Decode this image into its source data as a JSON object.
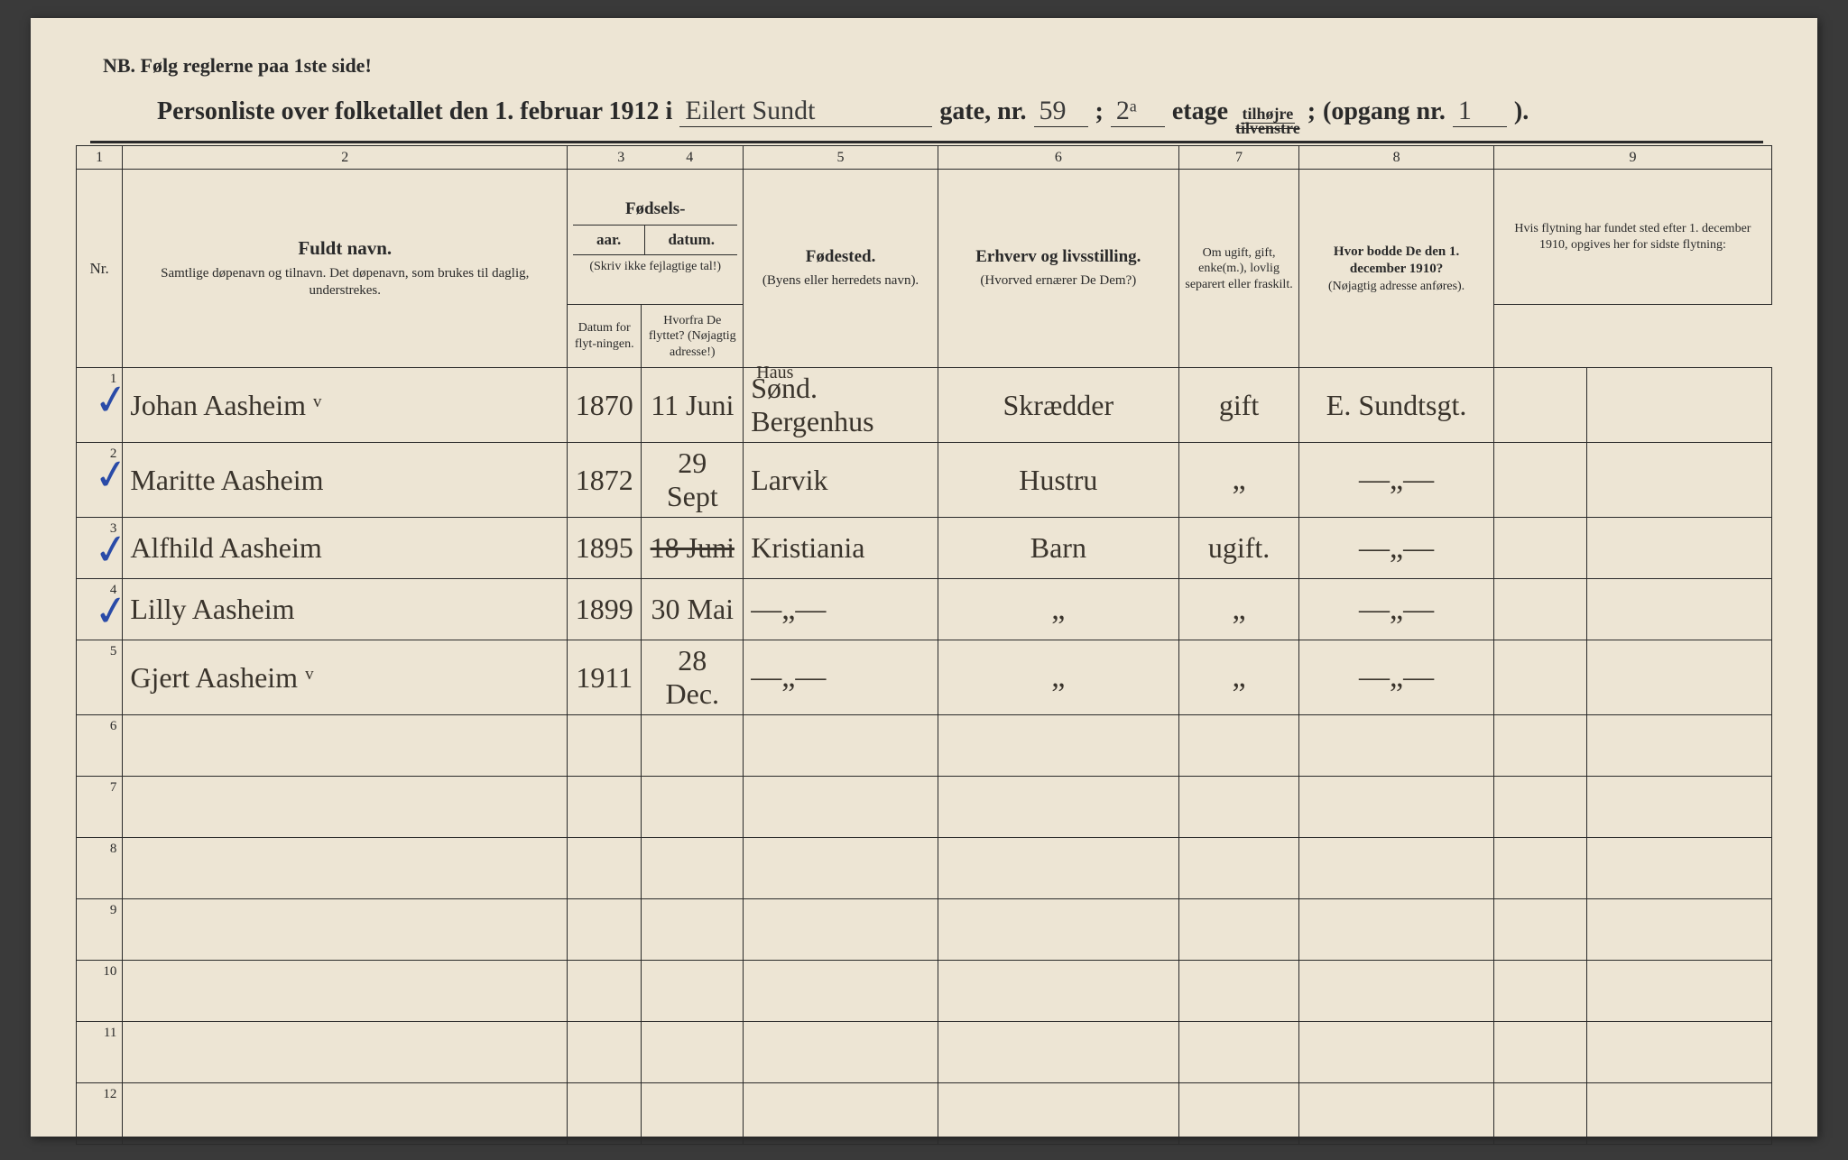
{
  "header": {
    "nb": "NB.   Følg reglerne paa 1ste side!",
    "title_prefix": "Personliste over folketallet den 1. februar 1912 i",
    "street_written": "Eilert Sundt",
    "gate_label": "gate, nr.",
    "gate_nr": "59",
    "semicolon": ";",
    "etage_nr": "2ᵃ",
    "etage_label": "etage",
    "side_top": "tilhøjre",
    "side_bottom": "tilvenstre",
    "side_sep": ";",
    "opgang_prefix": "(opgang  nr.",
    "opgang_nr": "1",
    "opgang_suffix": ")."
  },
  "colnums": [
    "1",
    "2",
    "3",
    "4",
    "5",
    "6",
    "7",
    "8",
    "9"
  ],
  "columns": {
    "nr": "Nr.",
    "name_title": "Fuldt navn.",
    "name_sub": "Samtlige døpenavn og tilnavn. Det døpenavn, som brukes til daglig, understrekes.",
    "birth_title": "Fødsels-",
    "birth_year": "aar.",
    "birth_date": "datum.",
    "birth_note": "(Skriv ikke fejlagtige tal!)",
    "birthplace_title": "Fødested.",
    "birthplace_sub": "(Byens eller herredets navn).",
    "occ_title": "Erhverv og livsstilling.",
    "occ_sub": "(Hvorved ernærer De Dem?)",
    "marital": "Om ugift, gift, enke(m.), lovlig separert eller fraskilt.",
    "addr_title": "Hvor bodde De den 1. december 1910?",
    "addr_sub": "(Nøjagtig adresse anføres).",
    "move_title": "Hvis flytning har fundet sted efter 1. december 1910, opgives her for sidste flytning:",
    "move_date": "Datum for flyt-ningen.",
    "move_from": "Hvorfra De flyttet? (Nøjagtig adresse!)"
  },
  "rows": [
    {
      "nr": "1",
      "check": true,
      "name": "Johan Aasheim ᵛ",
      "year": "1870",
      "date": "11 Juni",
      "bp_note": "Haus",
      "bp": "Sønd. Bergenhus",
      "occ": "Skrædder",
      "stat": "gift",
      "addr": "E. Sundtsgt.",
      "md": "",
      "mf": ""
    },
    {
      "nr": "2",
      "check": true,
      "name": "Maritte Aasheim",
      "year": "1872",
      "date": "29 Sept",
      "bp": "Larvik",
      "occ": "Hustru",
      "stat": "„",
      "addr": "—„—",
      "md": "",
      "mf": ""
    },
    {
      "nr": "3",
      "check": true,
      "name": "Alfhild Aasheim",
      "year": "1895",
      "date": "18 Juni",
      "date_struck": true,
      "bp": "Kristiania",
      "occ": "Barn",
      "stat": "ugift.",
      "addr": "—„—",
      "md": "",
      "mf": ""
    },
    {
      "nr": "4",
      "check": true,
      "name": "Lilly  Aasheim",
      "year": "1899",
      "date": "30 Mai",
      "bp": "—„—",
      "occ": "„",
      "stat": "„",
      "addr": "—„—",
      "md": "",
      "mf": ""
    },
    {
      "nr": "5",
      "check": false,
      "name": "Gjert Aasheim ᵛ",
      "year": "1911",
      "date": "28 Dec.",
      "bp": "—„—",
      "occ": "„",
      "stat": "„",
      "addr": "—„—",
      "md": "",
      "mf": ""
    },
    {
      "nr": "6"
    },
    {
      "nr": "7"
    },
    {
      "nr": "8"
    },
    {
      "nr": "9"
    },
    {
      "nr": "10"
    },
    {
      "nr": "11"
    },
    {
      "nr": "12"
    }
  ]
}
